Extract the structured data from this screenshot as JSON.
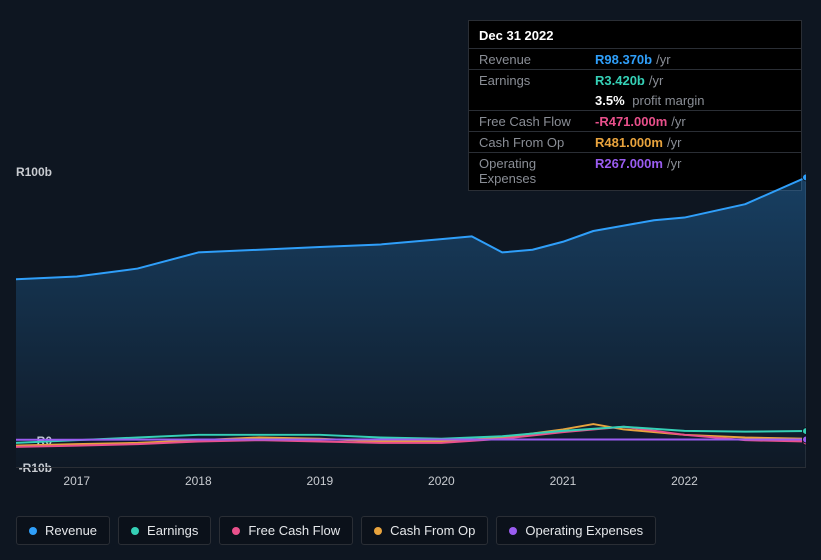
{
  "colors": {
    "revenue": "#2f9ffa",
    "earnings": "#35d0b6",
    "fcf": "#e9508b",
    "cashop": "#e8a33d",
    "opex": "#9a5cf0",
    "bg": "#0e1621",
    "panel": "#000",
    "border": "#2a2e35",
    "muted": "#8a8e96",
    "axis": "#c9ccd1"
  },
  "tooltip": {
    "date": "Dec 31 2022",
    "rows": [
      {
        "label": "Revenue",
        "value": "R98.370b",
        "unit": "/yr",
        "colorKey": "revenue"
      },
      {
        "label": "Earnings",
        "value": "R3.420b",
        "unit": "/yr",
        "colorKey": "earnings"
      }
    ],
    "pm_value": "3.5%",
    "pm_label": "profit margin",
    "rows2": [
      {
        "label": "Free Cash Flow",
        "value": "-R471.000m",
        "unit": "/yr",
        "colorKey": "fcf"
      },
      {
        "label": "Cash From Op",
        "value": "R481.000m",
        "unit": "/yr",
        "colorKey": "cashop"
      },
      {
        "label": "Operating Expenses",
        "value": "R267.000m",
        "unit": "/yr",
        "colorKey": "opex"
      }
    ]
  },
  "chart": {
    "type": "area-line",
    "y_range": [
      -10,
      100
    ],
    "y_ticks": [
      {
        "v": 100,
        "label": "R100b"
      },
      {
        "v": 0,
        "label": "R0"
      },
      {
        "v": -10,
        "label": "-R10b"
      }
    ],
    "x_range": [
      2016.5,
      2023.0
    ],
    "x_ticks": [
      2017,
      2018,
      2019,
      2020,
      2021,
      2022
    ],
    "series": {
      "revenue": {
        "colorKey": "revenue",
        "fill": true,
        "fill_opacity_top": 0.3,
        "fill_opacity_bottom": 0.02,
        "points": [
          [
            2016.5,
            60
          ],
          [
            2017.0,
            61
          ],
          [
            2017.5,
            64
          ],
          [
            2018.0,
            70
          ],
          [
            2018.5,
            71
          ],
          [
            2019.0,
            72
          ],
          [
            2019.5,
            73
          ],
          [
            2020.0,
            75
          ],
          [
            2020.25,
            76
          ],
          [
            2020.5,
            70
          ],
          [
            2020.75,
            71
          ],
          [
            2021.0,
            74
          ],
          [
            2021.25,
            78
          ],
          [
            2021.5,
            80
          ],
          [
            2021.75,
            82
          ],
          [
            2022.0,
            83
          ],
          [
            2022.5,
            88
          ],
          [
            2023.0,
            98
          ]
        ]
      },
      "cashop": {
        "colorKey": "cashop",
        "fill": false,
        "points": [
          [
            2016.5,
            -2
          ],
          [
            2017.0,
            -1.5
          ],
          [
            2017.5,
            -1
          ],
          [
            2018.0,
            0
          ],
          [
            2018.5,
            1
          ],
          [
            2019.0,
            0.5
          ],
          [
            2019.5,
            -0.5
          ],
          [
            2020.0,
            -0.5
          ],
          [
            2020.5,
            1
          ],
          [
            2021.0,
            4
          ],
          [
            2021.25,
            6
          ],
          [
            2021.5,
            4
          ],
          [
            2022.0,
            2
          ],
          [
            2022.5,
            1
          ],
          [
            2023.0,
            0.5
          ]
        ]
      },
      "earnings": {
        "colorKey": "earnings",
        "fill": false,
        "points": [
          [
            2016.5,
            -1
          ],
          [
            2017.0,
            0
          ],
          [
            2017.5,
            1
          ],
          [
            2018.0,
            2
          ],
          [
            2018.5,
            2
          ],
          [
            2019.0,
            2
          ],
          [
            2019.5,
            1
          ],
          [
            2020.0,
            0.5
          ],
          [
            2020.5,
            1.5
          ],
          [
            2021.0,
            3.5
          ],
          [
            2021.5,
            5
          ],
          [
            2022.0,
            3.5
          ],
          [
            2022.5,
            3.2
          ],
          [
            2023.0,
            3.4
          ]
        ]
      },
      "fcf": {
        "colorKey": "fcf",
        "fill": false,
        "points": [
          [
            2016.5,
            -2.5
          ],
          [
            2017.0,
            -2
          ],
          [
            2017.5,
            -1.5
          ],
          [
            2018.0,
            -0.5
          ],
          [
            2018.5,
            0
          ],
          [
            2019.0,
            -0.5
          ],
          [
            2019.5,
            -1
          ],
          [
            2020.0,
            -1
          ],
          [
            2020.5,
            0.5
          ],
          [
            2021.0,
            3
          ],
          [
            2021.5,
            5
          ],
          [
            2022.0,
            2
          ],
          [
            2022.5,
            0
          ],
          [
            2023.0,
            -0.5
          ]
        ]
      },
      "opex": {
        "colorKey": "opex",
        "fill": false,
        "points": [
          [
            2016.5,
            0.2
          ],
          [
            2017.0,
            0.2
          ],
          [
            2018.0,
            0.25
          ],
          [
            2019.0,
            0.25
          ],
          [
            2020.0,
            0.25
          ],
          [
            2021.0,
            0.25
          ],
          [
            2022.0,
            0.27
          ],
          [
            2023.0,
            0.27
          ]
        ]
      }
    },
    "marker_x": 2023.0
  },
  "legend": [
    {
      "label": "Revenue",
      "colorKey": "revenue"
    },
    {
      "label": "Earnings",
      "colorKey": "earnings"
    },
    {
      "label": "Free Cash Flow",
      "colorKey": "fcf"
    },
    {
      "label": "Cash From Op",
      "colorKey": "cashop"
    },
    {
      "label": "Operating Expenses",
      "colorKey": "opex"
    }
  ]
}
